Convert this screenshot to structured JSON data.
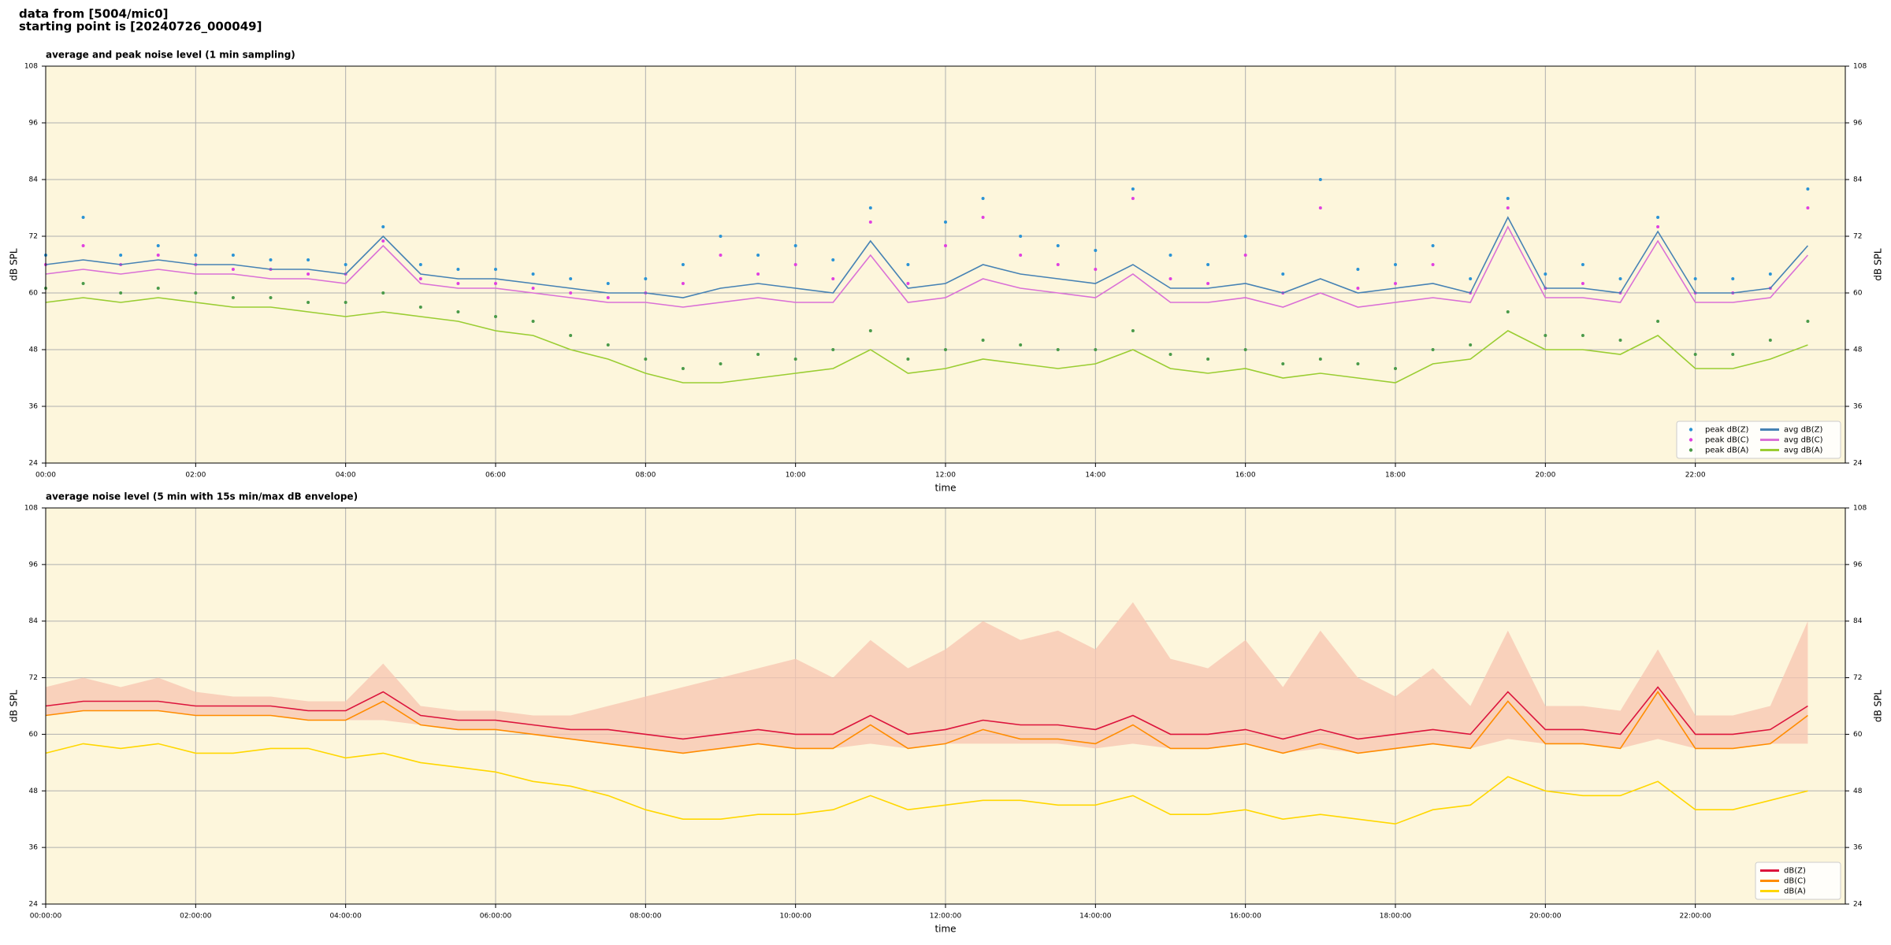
{
  "header": {
    "lines": [
      "data from [5004/mic0]",
      "starting point is [20240726_000049]"
    ]
  },
  "chart_data": [
    {
      "type": "line",
      "title": "average and peak noise level (1 min sampling)",
      "xlabel": "time",
      "ylabel": "dB SPL",
      "grid": true,
      "mirror_y": true,
      "background": "#fdf6dc",
      "legend": "lower right",
      "legend_columns": 2,
      "xlim": [
        "00:00",
        "24:00"
      ],
      "ylim": [
        24,
        108
      ],
      "yticks": [
        24,
        36,
        48,
        60,
        72,
        84,
        96,
        108
      ],
      "xticks": [
        "00:00",
        "02:00",
        "04:00",
        "06:00",
        "08:00",
        "10:00",
        "12:00",
        "14:00",
        "16:00",
        "18:00",
        "20:00",
        "22:00"
      ],
      "x": [
        "00:00",
        "00:30",
        "01:00",
        "01:30",
        "02:00",
        "02:30",
        "03:00",
        "03:30",
        "04:00",
        "04:30",
        "05:00",
        "05:30",
        "06:00",
        "06:30",
        "07:00",
        "07:30",
        "08:00",
        "08:30",
        "09:00",
        "09:30",
        "10:00",
        "10:30",
        "11:00",
        "11:30",
        "12:00",
        "12:30",
        "13:00",
        "13:30",
        "14:00",
        "14:30",
        "15:00",
        "15:30",
        "16:00",
        "16:30",
        "17:00",
        "17:30",
        "18:00",
        "18:30",
        "19:00",
        "19:30",
        "20:00",
        "20:30",
        "21:00",
        "21:30",
        "22:00",
        "22:30",
        "23:00",
        "23:30"
      ],
      "series": [
        {
          "name": "peak dB(Z)",
          "style": "scatter",
          "color": "#2a93d5",
          "values": [
            68,
            76,
            68,
            70,
            68,
            68,
            67,
            67,
            66,
            74,
            66,
            65,
            65,
            64,
            63,
            62,
            63,
            66,
            72,
            68,
            70,
            67,
            78,
            66,
            75,
            80,
            72,
            70,
            69,
            82,
            68,
            66,
            72,
            64,
            84,
            65,
            66,
            70,
            63,
            80,
            64,
            66,
            63,
            76,
            63,
            63,
            64,
            82
          ]
        },
        {
          "name": "peak dB(C)",
          "style": "scatter",
          "color": "#e040e0",
          "values": [
            66,
            70,
            66,
            68,
            66,
            65,
            65,
            64,
            64,
            71,
            63,
            62,
            62,
            61,
            60,
            59,
            60,
            62,
            68,
            64,
            66,
            63,
            75,
            62,
            70,
            76,
            68,
            66,
            65,
            80,
            63,
            62,
            68,
            60,
            78,
            61,
            62,
            66,
            60,
            78,
            61,
            62,
            60,
            74,
            60,
            60,
            61,
            78
          ]
        },
        {
          "name": "peak dB(A)",
          "style": "scatter",
          "color": "#4a9a4a",
          "values": [
            61,
            62,
            60,
            61,
            60,
            59,
            59,
            58,
            58,
            60,
            57,
            56,
            55,
            54,
            51,
            49,
            46,
            44,
            45,
            47,
            46,
            48,
            52,
            46,
            48,
            50,
            49,
            48,
            48,
            52,
            47,
            46,
            48,
            45,
            46,
            45,
            44,
            48,
            49,
            56,
            51,
            51,
            50,
            54,
            47,
            47,
            50,
            54
          ]
        },
        {
          "name": "avg dB(Z)",
          "style": "line",
          "color": "#4682b4",
          "values": [
            66,
            67,
            66,
            67,
            66,
            66,
            65,
            65,
            64,
            72,
            64,
            63,
            63,
            62,
            61,
            60,
            60,
            59,
            61,
            62,
            61,
            60,
            71,
            61,
            62,
            66,
            64,
            63,
            62,
            66,
            61,
            61,
            62,
            60,
            63,
            60,
            61,
            62,
            60,
            76,
            61,
            61,
            60,
            73,
            60,
            60,
            61,
            70
          ]
        },
        {
          "name": "avg dB(C)",
          "style": "line",
          "color": "#da70d6",
          "values": [
            64,
            65,
            64,
            65,
            64,
            64,
            63,
            63,
            62,
            70,
            62,
            61,
            61,
            60,
            59,
            58,
            58,
            57,
            58,
            59,
            58,
            58,
            68,
            58,
            59,
            63,
            61,
            60,
            59,
            64,
            58,
            58,
            59,
            57,
            60,
            57,
            58,
            59,
            58,
            74,
            59,
            59,
            58,
            71,
            58,
            58,
            59,
            68
          ]
        },
        {
          "name": "avg dB(A)",
          "style": "line",
          "color": "#9acd32",
          "values": [
            58,
            59,
            58,
            59,
            58,
            57,
            57,
            56,
            55,
            56,
            55,
            54,
            52,
            51,
            48,
            46,
            43,
            41,
            41,
            42,
            43,
            44,
            48,
            43,
            44,
            46,
            45,
            44,
            45,
            48,
            44,
            43,
            44,
            42,
            43,
            42,
            41,
            45,
            46,
            52,
            48,
            48,
            47,
            51,
            44,
            44,
            46,
            49
          ]
        }
      ]
    },
    {
      "type": "line",
      "title": "average noise level (5 min with 15s min/max dB envelope)",
      "xlabel": "time",
      "ylabel": "dB SPL",
      "grid": true,
      "mirror_y": true,
      "background": "#fdf6dc",
      "legend": "lower right",
      "legend_columns": 1,
      "xlim": [
        "00:00:00",
        "24:00:00"
      ],
      "ylim": [
        24,
        108
      ],
      "yticks": [
        24,
        36,
        48,
        60,
        72,
        84,
        96,
        108
      ],
      "xticks": [
        "00:00:00",
        "02:00:00",
        "04:00:00",
        "06:00:00",
        "08:00:00",
        "10:00:00",
        "12:00:00",
        "14:00:00",
        "16:00:00",
        "18:00:00",
        "20:00:00",
        "22:00:00"
      ],
      "x": [
        "00:00:00",
        "00:30:00",
        "01:00:00",
        "01:30:00",
        "02:00:00",
        "02:30:00",
        "03:00:00",
        "03:30:00",
        "04:00:00",
        "04:30:00",
        "05:00:00",
        "05:30:00",
        "06:00:00",
        "06:30:00",
        "07:00:00",
        "07:30:00",
        "08:00:00",
        "08:30:00",
        "09:00:00",
        "09:30:00",
        "10:00:00",
        "10:30:00",
        "11:00:00",
        "11:30:00",
        "12:00:00",
        "12:30:00",
        "13:00:00",
        "13:30:00",
        "14:00:00",
        "14:30:00",
        "15:00:00",
        "15:30:00",
        "16:00:00",
        "16:30:00",
        "17:00:00",
        "17:30:00",
        "18:00:00",
        "18:30:00",
        "19:00:00",
        "19:30:00",
        "20:00:00",
        "20:30:00",
        "21:00:00",
        "21:30:00",
        "22:00:00",
        "22:30:00",
        "23:00:00",
        "23:30:00"
      ],
      "envelope": {
        "color": "#f7c4b0",
        "low": [
          64,
          65,
          65,
          65,
          64,
          64,
          64,
          63,
          63,
          63,
          62,
          61,
          61,
          60,
          59,
          58,
          57,
          56,
          57,
          58,
          57,
          57,
          58,
          57,
          58,
          58,
          58,
          58,
          57,
          58,
          57,
          57,
          58,
          56,
          57,
          56,
          57,
          58,
          57,
          59,
          58,
          58,
          57,
          59,
          57,
          57,
          58,
          58
        ],
        "high": [
          70,
          72,
          70,
          72,
          69,
          68,
          68,
          67,
          67,
          75,
          66,
          65,
          65,
          64,
          64,
          66,
          68,
          70,
          72,
          74,
          76,
          72,
          80,
          74,
          78,
          84,
          80,
          82,
          78,
          88,
          76,
          74,
          80,
          70,
          82,
          72,
          68,
          74,
          66,
          82,
          66,
          66,
          65,
          78,
          64,
          64,
          66,
          84
        ]
      },
      "series": [
        {
          "name": "dB(Z)",
          "style": "line",
          "color": "#dc143c",
          "values": [
            66,
            67,
            67,
            67,
            66,
            66,
            66,
            65,
            65,
            69,
            64,
            63,
            63,
            62,
            61,
            61,
            60,
            59,
            60,
            61,
            60,
            60,
            64,
            60,
            61,
            63,
            62,
            62,
            61,
            64,
            60,
            60,
            61,
            59,
            61,
            59,
            60,
            61,
            60,
            69,
            61,
            61,
            60,
            70,
            60,
            60,
            61,
            66
          ]
        },
        {
          "name": "dB(C)",
          "style": "line",
          "color": "#ff8c00",
          "values": [
            64,
            65,
            65,
            65,
            64,
            64,
            64,
            63,
            63,
            67,
            62,
            61,
            61,
            60,
            59,
            58,
            57,
            56,
            57,
            58,
            57,
            57,
            62,
            57,
            58,
            61,
            59,
            59,
            58,
            62,
            57,
            57,
            58,
            56,
            58,
            56,
            57,
            58,
            57,
            67,
            58,
            58,
            57,
            69,
            57,
            57,
            58,
            64
          ]
        },
        {
          "name": "dB(A)",
          "style": "line",
          "color": "#ffd700",
          "values": [
            56,
            58,
            57,
            58,
            56,
            56,
            57,
            57,
            55,
            56,
            54,
            53,
            52,
            50,
            49,
            47,
            44,
            42,
            42,
            43,
            43,
            44,
            47,
            44,
            45,
            46,
            46,
            45,
            45,
            47,
            43,
            43,
            44,
            42,
            43,
            42,
            41,
            44,
            45,
            51,
            48,
            47,
            47,
            50,
            44,
            44,
            46,
            48
          ]
        }
      ]
    }
  ]
}
